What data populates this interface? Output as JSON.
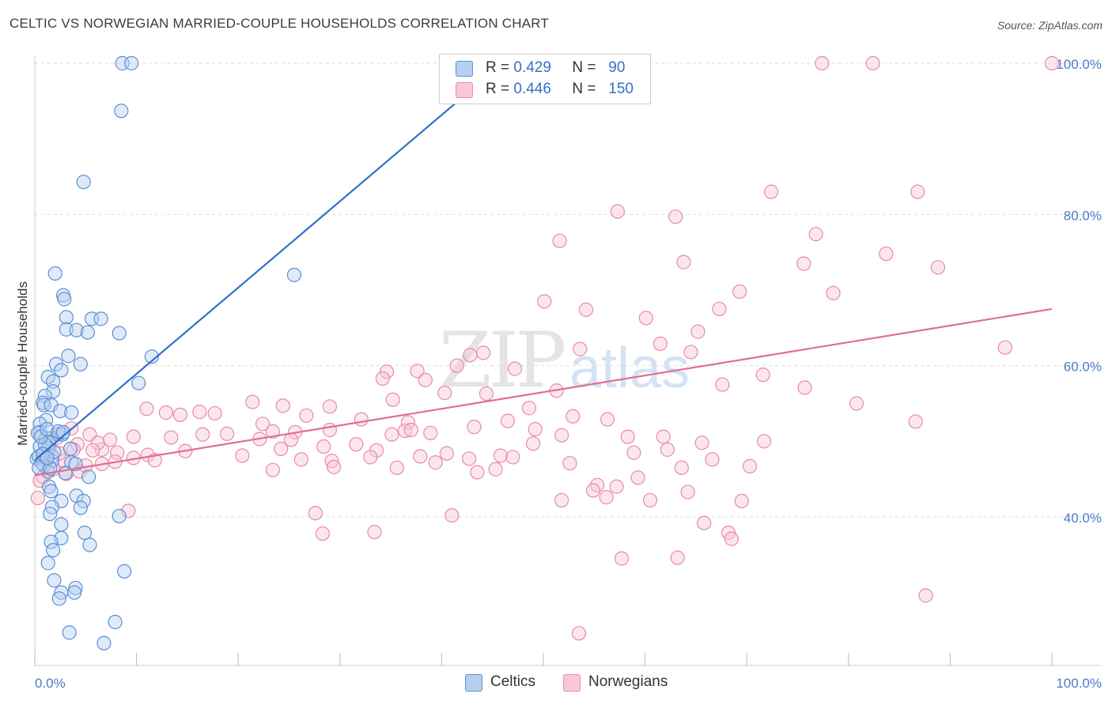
{
  "header": {
    "title": "CELTIC VS NORWEGIAN MARRIED-COUPLE HOUSEHOLDS CORRELATION CHART",
    "source": "Source: ZipAtlas.com"
  },
  "watermark": {
    "zip": "ZIP",
    "atlas": "atlas"
  },
  "colors": {
    "celtic_stroke": "#5b8fd6",
    "celtic_fill": "#b8d0f0",
    "celtic_line": "#2f72cc",
    "norwegian_stroke": "#e88aa8",
    "norwegian_fill": "#f8c8d6",
    "norwegian_line": "#e06e97",
    "tick": "#4a7cc7",
    "grid": "#dddddd"
  },
  "legend_top": [
    {
      "series": "Celtics",
      "r_label": "R =",
      "r_value": "0.429",
      "n_label": "N =",
      "n_value": "90"
    },
    {
      "series": "Norwegians",
      "r_label": "R =",
      "r_value": "0.446",
      "n_label": "N =",
      "n_value": "150"
    }
  ],
  "legend_bottom": [
    "Celtics",
    "Norwegians"
  ],
  "chart_data": {
    "type": "scatter",
    "title": "CELTIC VS NORWEGIAN MARRIED-COUPLE HOUSEHOLDS CORRELATION CHART",
    "xlabel": "",
    "ylabel": "Married-couple Households",
    "xlim": [
      0,
      100
    ],
    "ylim": [
      20,
      102
    ],
    "x_ticks": [
      0,
      10,
      20,
      30,
      40,
      50,
      60,
      70,
      80,
      90,
      100
    ],
    "x_tick_labels": {
      "0": "0.0%",
      "100": "100.0%"
    },
    "y_ticks": [
      40,
      60,
      80,
      100
    ],
    "y_tick_labels": [
      "40.0%",
      "60.0%",
      "80.0%",
      "100.0%"
    ],
    "grid": true,
    "legend": "top-center",
    "series": [
      {
        "name": "Celtics",
        "r": 0.429,
        "n": 90,
        "trend": {
          "x": [
            0,
            46
          ],
          "y": [
            47.5,
            100
          ]
        },
        "points": [
          [
            8.6,
            100
          ],
          [
            9.5,
            100
          ],
          [
            8.5,
            93.7
          ],
          [
            4.8,
            84.3
          ],
          [
            2.0,
            72.2
          ],
          [
            25.5,
            72.0
          ],
          [
            2.8,
            69.3
          ],
          [
            2.9,
            68.8
          ],
          [
            3.1,
            66.4
          ],
          [
            5.6,
            66.2
          ],
          [
            6.5,
            66.2
          ],
          [
            3.1,
            64.8
          ],
          [
            4.1,
            64.7
          ],
          [
            5.2,
            64.4
          ],
          [
            8.3,
            64.3
          ],
          [
            3.3,
            61.3
          ],
          [
            11.5,
            61.2
          ],
          [
            2.1,
            60.2
          ],
          [
            4.5,
            60.2
          ],
          [
            2.6,
            59.4
          ],
          [
            1.3,
            58.5
          ],
          [
            1.8,
            57.9
          ],
          [
            10.2,
            57.7
          ],
          [
            1.8,
            56.6
          ],
          [
            1.0,
            56.0
          ],
          [
            0.8,
            55.1
          ],
          [
            0.9,
            54.8
          ],
          [
            1.6,
            54.8
          ],
          [
            2.5,
            54.0
          ],
          [
            3.6,
            53.8
          ],
          [
            1.1,
            52.8
          ],
          [
            0.5,
            52.3
          ],
          [
            0.5,
            51.2
          ],
          [
            0.3,
            51.1
          ],
          [
            2.2,
            50.9
          ],
          [
            1.1,
            50.4
          ],
          [
            1.6,
            50.4
          ],
          [
            2.7,
            50.9
          ],
          [
            1.4,
            49.8
          ],
          [
            0.5,
            49.3
          ],
          [
            1.3,
            49.1
          ],
          [
            1.7,
            48.0
          ],
          [
            0.2,
            47.7
          ],
          [
            0.8,
            47.6
          ],
          [
            1.1,
            47.5
          ],
          [
            1.7,
            47.4
          ],
          [
            3.6,
            47.2
          ],
          [
            4.0,
            47.0
          ],
          [
            0.9,
            46.8
          ],
          [
            1.3,
            46.0
          ],
          [
            3.0,
            45.8
          ],
          [
            5.3,
            45.3
          ],
          [
            1.4,
            44.0
          ],
          [
            1.6,
            43.4
          ],
          [
            4.1,
            42.8
          ],
          [
            2.6,
            42.1
          ],
          [
            4.8,
            42.1
          ],
          [
            1.7,
            41.3
          ],
          [
            4.5,
            41.2
          ],
          [
            1.5,
            40.4
          ],
          [
            8.3,
            40.1
          ],
          [
            2.6,
            39.0
          ],
          [
            4.9,
            37.9
          ],
          [
            2.6,
            37.2
          ],
          [
            1.6,
            36.7
          ],
          [
            5.4,
            36.3
          ],
          [
            1.8,
            35.6
          ],
          [
            1.3,
            33.9
          ],
          [
            8.8,
            32.8
          ],
          [
            1.9,
            31.6
          ],
          [
            4.0,
            30.6
          ],
          [
            2.6,
            30.0
          ],
          [
            3.9,
            30.0
          ],
          [
            2.4,
            29.2
          ],
          [
            7.9,
            26.1
          ],
          [
            3.4,
            24.7
          ],
          [
            6.8,
            23.3
          ],
          [
            0.4,
            48.0
          ],
          [
            0.7,
            47.1
          ],
          [
            1.0,
            49.6
          ],
          [
            0.6,
            50.6
          ],
          [
            1.2,
            51.6
          ],
          [
            1.9,
            48.6
          ],
          [
            2.3,
            51.3
          ],
          [
            3.5,
            49.0
          ],
          [
            2.8,
            51.2
          ],
          [
            0.4,
            46.5
          ],
          [
            0.8,
            48.3
          ],
          [
            1.5,
            46.4
          ],
          [
            1.2,
            47.8
          ]
        ]
      },
      {
        "name": "Norwegians",
        "r": 0.446,
        "n": 150,
        "trend": {
          "x": [
            0,
            100
          ],
          "y": [
            45.5,
            67.5
          ]
        },
        "points": [
          [
            77.4,
            100
          ],
          [
            82.4,
            100
          ],
          [
            100,
            100
          ],
          [
            72.4,
            83.0
          ],
          [
            86.8,
            83.0
          ],
          [
            57.3,
            80.4
          ],
          [
            63.0,
            79.7
          ],
          [
            76.8,
            77.4
          ],
          [
            51.6,
            76.5
          ],
          [
            83.7,
            74.8
          ],
          [
            88.8,
            73.0
          ],
          [
            63.8,
            73.7
          ],
          [
            75.6,
            73.5
          ],
          [
            69.3,
            69.8
          ],
          [
            78.5,
            69.6
          ],
          [
            50.1,
            68.5
          ],
          [
            54.2,
            67.4
          ],
          [
            67.3,
            67.5
          ],
          [
            60.1,
            66.3
          ],
          [
            65.2,
            64.5
          ],
          [
            95.4,
            62.4
          ],
          [
            61.5,
            62.9
          ],
          [
            53.6,
            62.2
          ],
          [
            42.8,
            61.4
          ],
          [
            44.1,
            61.7
          ],
          [
            64.5,
            61.8
          ],
          [
            34.6,
            59.2
          ],
          [
            41.5,
            60.0
          ],
          [
            47.2,
            59.6
          ],
          [
            37.6,
            59.3
          ],
          [
            34.2,
            58.3
          ],
          [
            38.4,
            58.1
          ],
          [
            67.6,
            57.5
          ],
          [
            75.7,
            57.1
          ],
          [
            71.6,
            58.8
          ],
          [
            44.4,
            56.3
          ],
          [
            40.3,
            56.4
          ],
          [
            51.3,
            56.7
          ],
          [
            35.2,
            55.5
          ],
          [
            29.0,
            54.6
          ],
          [
            24.4,
            54.7
          ],
          [
            48.6,
            54.4
          ],
          [
            21.4,
            55.2
          ],
          [
            11.0,
            54.3
          ],
          [
            16.2,
            53.9
          ],
          [
            12.9,
            53.8
          ],
          [
            14.3,
            53.5
          ],
          [
            17.7,
            53.7
          ],
          [
            32.1,
            52.9
          ],
          [
            46.5,
            52.7
          ],
          [
            36.7,
            52.5
          ],
          [
            26.7,
            53.4
          ],
          [
            22.4,
            52.3
          ],
          [
            56.3,
            52.9
          ],
          [
            52.9,
            53.3
          ],
          [
            36.4,
            51.4
          ],
          [
            37.0,
            51.5
          ],
          [
            9.7,
            50.6
          ],
          [
            13.4,
            50.5
          ],
          [
            16.5,
            50.9
          ],
          [
            22.1,
            50.3
          ],
          [
            18.9,
            51.0
          ],
          [
            23.4,
            51.3
          ],
          [
            25.6,
            51.2
          ],
          [
            29.0,
            51.5
          ],
          [
            38.9,
            51.1
          ],
          [
            43.2,
            51.9
          ],
          [
            49.2,
            51.6
          ],
          [
            51.8,
            50.8
          ],
          [
            58.3,
            50.6
          ],
          [
            61.8,
            50.6
          ],
          [
            65.6,
            49.8
          ],
          [
            71.7,
            50.0
          ],
          [
            35.1,
            50.9
          ],
          [
            8.1,
            48.5
          ],
          [
            6.6,
            48.9
          ],
          [
            14.8,
            48.7
          ],
          [
            20.4,
            48.1
          ],
          [
            24.2,
            49.0
          ],
          [
            25.2,
            50.2
          ],
          [
            28.4,
            49.3
          ],
          [
            33.6,
            48.8
          ],
          [
            37.9,
            48.0
          ],
          [
            40.5,
            48.4
          ],
          [
            45.8,
            48.1
          ],
          [
            49.0,
            49.7
          ],
          [
            7.9,
            47.3
          ],
          [
            9.7,
            47.8
          ],
          [
            11.1,
            48.2
          ],
          [
            26.2,
            47.6
          ],
          [
            29.2,
            47.4
          ],
          [
            33.0,
            47.9
          ],
          [
            42.7,
            47.7
          ],
          [
            47.0,
            47.9
          ],
          [
            4.4,
            46.0
          ],
          [
            6.6,
            47.0
          ],
          [
            11.8,
            47.5
          ],
          [
            23.4,
            46.2
          ],
          [
            29.4,
            46.6
          ],
          [
            35.6,
            46.5
          ],
          [
            43.5,
            45.9
          ],
          [
            59.3,
            45.2
          ],
          [
            63.6,
            46.5
          ],
          [
            55.3,
            44.2
          ],
          [
            57.2,
            44.0
          ],
          [
            54.9,
            43.5
          ],
          [
            64.2,
            43.3
          ],
          [
            56.2,
            42.6
          ],
          [
            60.5,
            42.2
          ],
          [
            69.5,
            42.1
          ],
          [
            9.2,
            40.8
          ],
          [
            27.6,
            40.5
          ],
          [
            41.0,
            40.2
          ],
          [
            65.8,
            39.2
          ],
          [
            68.2,
            37.9
          ],
          [
            68.5,
            37.1
          ],
          [
            33.4,
            38.0
          ],
          [
            51.8,
            42.2
          ],
          [
            63.2,
            34.6
          ],
          [
            87.6,
            29.6
          ],
          [
            57.7,
            34.5
          ],
          [
            53.5,
            24.6
          ],
          [
            80.8,
            55.0
          ],
          [
            86.6,
            52.6
          ],
          [
            28.3,
            37.8
          ],
          [
            2.2,
            50.5
          ],
          [
            3.6,
            51.7
          ],
          [
            5.4,
            50.9
          ],
          [
            4.2,
            49.6
          ],
          [
            1.8,
            46.3
          ],
          [
            2.9,
            47.4
          ],
          [
            0.8,
            45.3
          ],
          [
            0.5,
            44.8
          ],
          [
            0.3,
            42.5
          ],
          [
            2.4,
            48.4
          ],
          [
            3.8,
            48.9
          ],
          [
            6.2,
            49.8
          ],
          [
            7.4,
            50.2
          ],
          [
            5.7,
            48.8
          ],
          [
            1.4,
            49.0
          ],
          [
            3.1,
            45.7
          ],
          [
            5.0,
            46.8
          ],
          [
            31.6,
            49.6
          ],
          [
            39.4,
            47.2
          ],
          [
            45.3,
            46.3
          ],
          [
            52.6,
            47.1
          ],
          [
            58.9,
            48.5
          ],
          [
            62.2,
            48.9
          ],
          [
            66.6,
            47.6
          ],
          [
            70.3,
            46.7
          ]
        ]
      }
    ]
  }
}
